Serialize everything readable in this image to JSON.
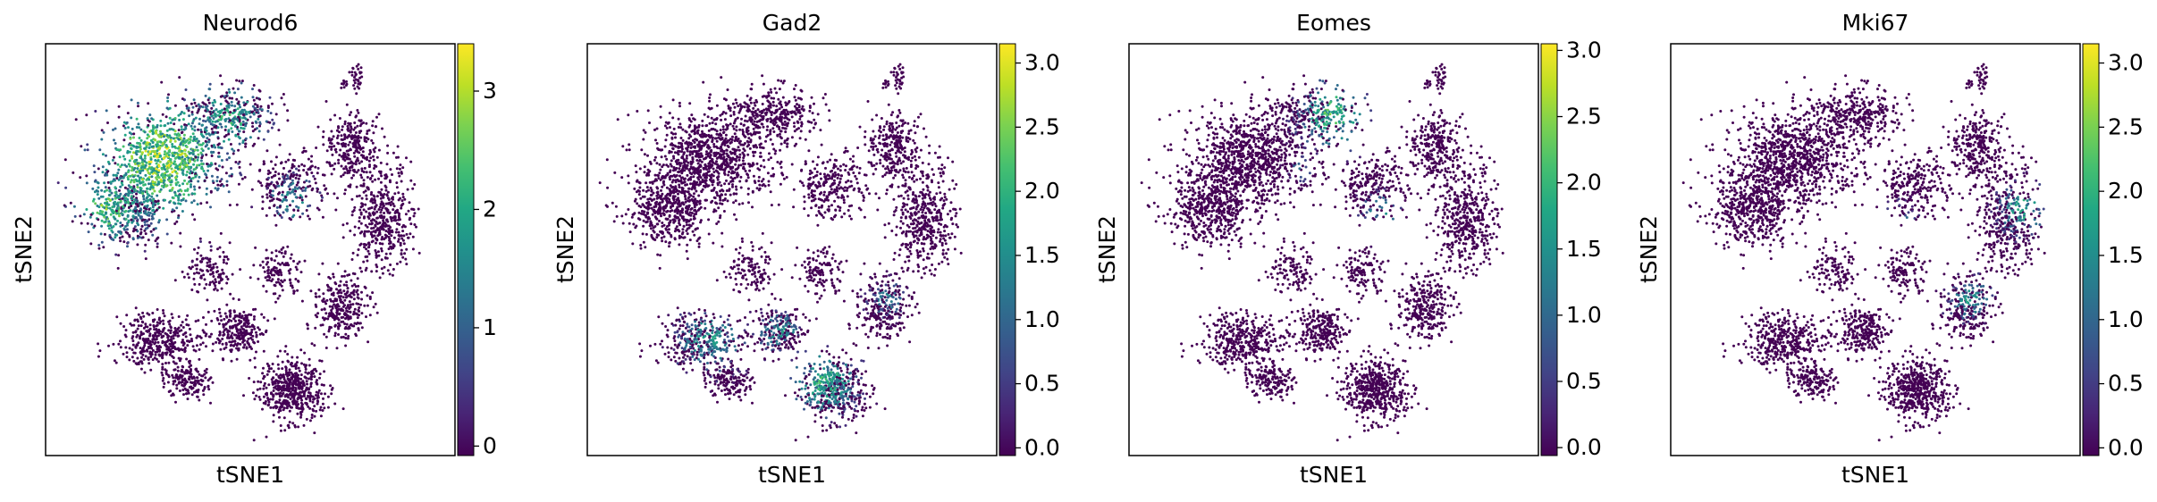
{
  "chart_data": [
    {
      "type": "scatter",
      "title": "Neurod6",
      "xlabel": "tSNE1",
      "ylabel": "tSNE2",
      "colorbar": {
        "colormap": "viridis",
        "range": [
          -0.08,
          3.4
        ],
        "ticks": [
          0,
          1,
          2,
          3
        ],
        "tick_labels": [
          "0",
          "1",
          "2",
          "3"
        ]
      },
      "high_expression_regions": [
        "upper-left cluster",
        "upper-center",
        "center-right band"
      ],
      "max_value_approx": 3.4
    },
    {
      "type": "scatter",
      "title": "Gad2",
      "xlabel": "tSNE1",
      "ylabel": "tSNE2",
      "colorbar": {
        "colormap": "viridis",
        "range": [
          -0.06,
          3.15
        ],
        "ticks": [
          0,
          0.5,
          1,
          1.5,
          2,
          2.5,
          3
        ],
        "tick_labels": [
          "0.0",
          "0.5",
          "1.0",
          "1.5",
          "2.0",
          "2.5",
          "3.0"
        ]
      },
      "high_expression_regions": [
        "lower-center cluster",
        "lower-left cluster",
        "center-right lower"
      ],
      "max_value_approx": 3.15
    },
    {
      "type": "scatter",
      "title": "Eomes",
      "xlabel": "tSNE1",
      "ylabel": "tSNE2",
      "colorbar": {
        "colormap": "viridis",
        "range": [
          -0.06,
          3.05
        ],
        "ticks": [
          0,
          0.5,
          1,
          1.5,
          2,
          2.5,
          3
        ],
        "tick_labels": [
          "0.0",
          "0.5",
          "1.0",
          "1.5",
          "2.0",
          "2.5",
          "3.0"
        ]
      },
      "high_expression_regions": [
        "upper-center band",
        "center-right band"
      ],
      "max_value_approx": 3.05
    },
    {
      "type": "scatter",
      "title": "Mki67",
      "xlabel": "tSNE1",
      "ylabel": "tSNE2",
      "colorbar": {
        "colormap": "viridis",
        "range": [
          -0.06,
          3.15
        ],
        "ticks": [
          0,
          0.5,
          1,
          1.5,
          2,
          2.5,
          3
        ],
        "tick_labels": [
          "0.0",
          "0.5",
          "1.0",
          "1.5",
          "2.0",
          "2.5",
          "3.0"
        ]
      },
      "high_expression_regions": [
        "right cluster",
        "center-right lower band"
      ],
      "max_value_approx": 3.15
    }
  ]
}
